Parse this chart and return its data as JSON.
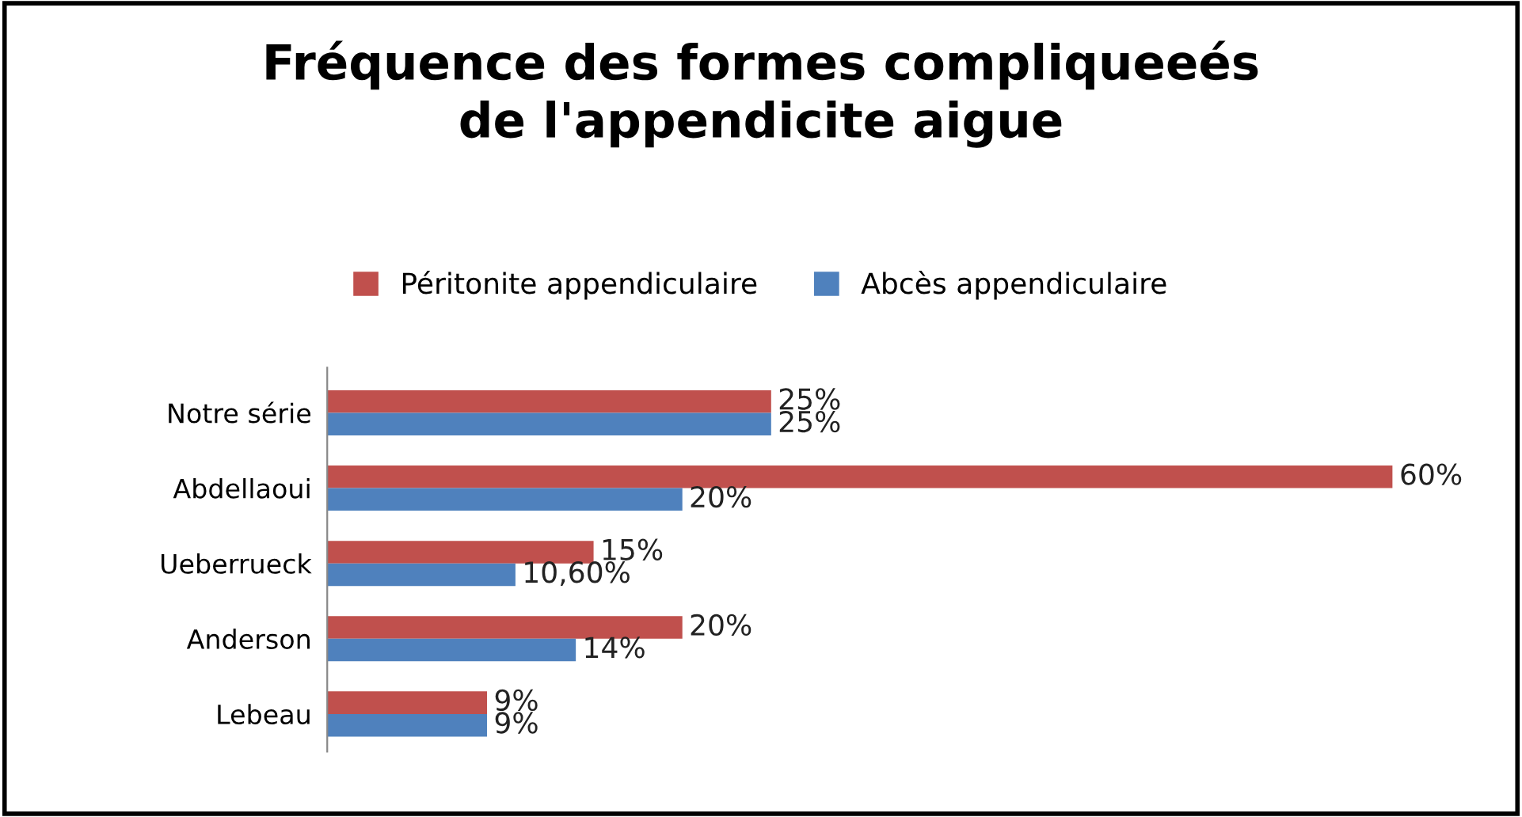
{
  "chart_data": {
    "type": "bar",
    "orientation": "horizontal",
    "title": "Fréquence des formes compliqueeés\nde l'appendicite aigue",
    "categories": [
      "Notre série",
      "Abdellaoui",
      "Ueberrueck",
      "Anderson",
      "Lebeau"
    ],
    "series": [
      {
        "name": "Péritonite appendiculaire",
        "color": "#c0504d",
        "values": [
          25,
          60,
          15,
          20,
          9
        ],
        "value_labels": [
          "25%",
          "60%",
          "15%",
          "20%",
          "9%"
        ]
      },
      {
        "name": "Abcès appendiculaire",
        "color": "#4f81bd",
        "values": [
          25,
          20,
          10.6,
          14,
          9
        ],
        "value_labels": [
          "25%",
          "20%",
          "10,60%",
          "14%",
          "9%"
        ]
      }
    ],
    "legend": "top",
    "grid": false,
    "tick_labels": "y"
  }
}
